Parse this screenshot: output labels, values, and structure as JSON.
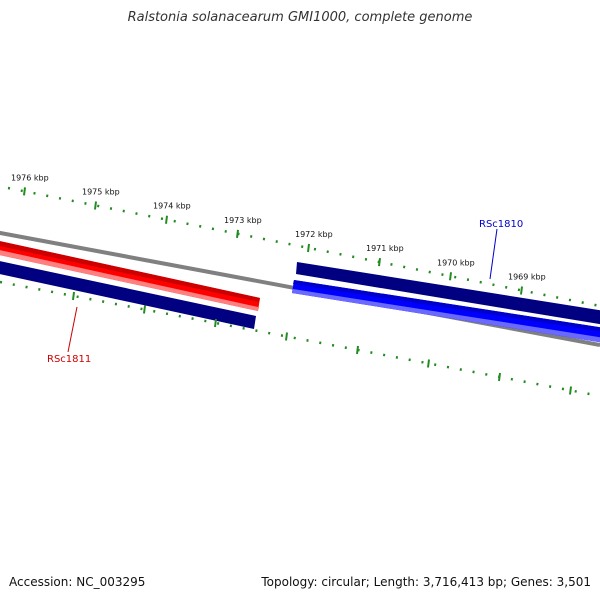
{
  "title": "Ralstonia solanacearum GMI1000, complete genome",
  "footer": {
    "accession": "Accession: NC_003295",
    "summary": "Topology: circular; Length: 3,716,413 bp; Genes: 3,501"
  },
  "scale": {
    "ticks": [
      {
        "label": "1976 kbp",
        "kbp": 1976
      },
      {
        "label": "1975 kbp",
        "kbp": 1975
      },
      {
        "label": "1974 kbp",
        "kbp": 1974
      },
      {
        "label": "1973 kbp",
        "kbp": 1973
      },
      {
        "label": "1972 kbp",
        "kbp": 1972
      },
      {
        "label": "1971 kbp",
        "kbp": 1971
      },
      {
        "label": "1970 kbp",
        "kbp": 1970
      },
      {
        "label": "1969 kbp",
        "kbp": 1969
      }
    ]
  },
  "genes": [
    {
      "label": "RSc1811",
      "color": "#cc0000",
      "strand": "reverse"
    },
    {
      "label": "RSc1810",
      "color": "#0000cc",
      "strand": "forward"
    }
  ],
  "colors": {
    "backbone": "#808080",
    "tick": "#228b22",
    "forward_gene": "#0000ff",
    "reverse_gene": "#ff0000",
    "gene_outline": "#000080"
  }
}
